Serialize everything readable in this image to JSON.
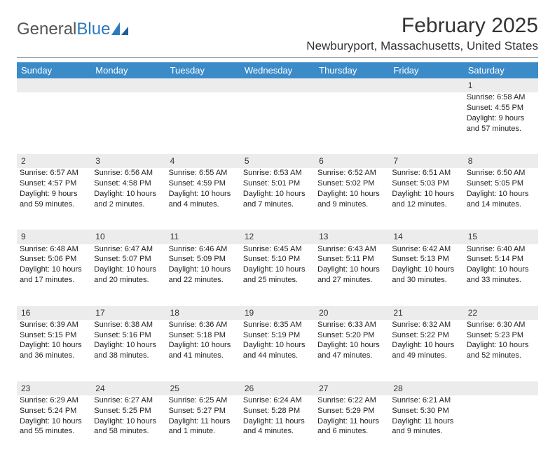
{
  "logo": {
    "text_gray": "General",
    "text_blue": "Blue"
  },
  "header": {
    "title": "February 2025",
    "location": "Newburyport, Massachusetts, United States"
  },
  "colors": {
    "header_bg": "#3b8bc9",
    "header_text": "#ffffff",
    "daynum_bg": "#ececec",
    "body_text": "#222222",
    "logo_gray": "#555555",
    "logo_blue": "#2b7bbf"
  },
  "weekdays": [
    "Sunday",
    "Monday",
    "Tuesday",
    "Wednesday",
    "Thursday",
    "Friday",
    "Saturday"
  ],
  "weeks": [
    {
      "nums": [
        "",
        "",
        "",
        "",
        "",
        "",
        "1"
      ],
      "cells": [
        "",
        "",
        "",
        "",
        "",
        "",
        "Sunrise: 6:58 AM\nSunset: 4:55 PM\nDaylight: 9 hours and 57 minutes."
      ]
    },
    {
      "nums": [
        "2",
        "3",
        "4",
        "5",
        "6",
        "7",
        "8"
      ],
      "cells": [
        "Sunrise: 6:57 AM\nSunset: 4:57 PM\nDaylight: 9 hours and 59 minutes.",
        "Sunrise: 6:56 AM\nSunset: 4:58 PM\nDaylight: 10 hours and 2 minutes.",
        "Sunrise: 6:55 AM\nSunset: 4:59 PM\nDaylight: 10 hours and 4 minutes.",
        "Sunrise: 6:53 AM\nSunset: 5:01 PM\nDaylight: 10 hours and 7 minutes.",
        "Sunrise: 6:52 AM\nSunset: 5:02 PM\nDaylight: 10 hours and 9 minutes.",
        "Sunrise: 6:51 AM\nSunset: 5:03 PM\nDaylight: 10 hours and 12 minutes.",
        "Sunrise: 6:50 AM\nSunset: 5:05 PM\nDaylight: 10 hours and 14 minutes."
      ]
    },
    {
      "nums": [
        "9",
        "10",
        "11",
        "12",
        "13",
        "14",
        "15"
      ],
      "cells": [
        "Sunrise: 6:48 AM\nSunset: 5:06 PM\nDaylight: 10 hours and 17 minutes.",
        "Sunrise: 6:47 AM\nSunset: 5:07 PM\nDaylight: 10 hours and 20 minutes.",
        "Sunrise: 6:46 AM\nSunset: 5:09 PM\nDaylight: 10 hours and 22 minutes.",
        "Sunrise: 6:45 AM\nSunset: 5:10 PM\nDaylight: 10 hours and 25 minutes.",
        "Sunrise: 6:43 AM\nSunset: 5:11 PM\nDaylight: 10 hours and 27 minutes.",
        "Sunrise: 6:42 AM\nSunset: 5:13 PM\nDaylight: 10 hours and 30 minutes.",
        "Sunrise: 6:40 AM\nSunset: 5:14 PM\nDaylight: 10 hours and 33 minutes."
      ]
    },
    {
      "nums": [
        "16",
        "17",
        "18",
        "19",
        "20",
        "21",
        "22"
      ],
      "cells": [
        "Sunrise: 6:39 AM\nSunset: 5:15 PM\nDaylight: 10 hours and 36 minutes.",
        "Sunrise: 6:38 AM\nSunset: 5:16 PM\nDaylight: 10 hours and 38 minutes.",
        "Sunrise: 6:36 AM\nSunset: 5:18 PM\nDaylight: 10 hours and 41 minutes.",
        "Sunrise: 6:35 AM\nSunset: 5:19 PM\nDaylight: 10 hours and 44 minutes.",
        "Sunrise: 6:33 AM\nSunset: 5:20 PM\nDaylight: 10 hours and 47 minutes.",
        "Sunrise: 6:32 AM\nSunset: 5:22 PM\nDaylight: 10 hours and 49 minutes.",
        "Sunrise: 6:30 AM\nSunset: 5:23 PM\nDaylight: 10 hours and 52 minutes."
      ]
    },
    {
      "nums": [
        "23",
        "24",
        "25",
        "26",
        "27",
        "28",
        ""
      ],
      "cells": [
        "Sunrise: 6:29 AM\nSunset: 5:24 PM\nDaylight: 10 hours and 55 minutes.",
        "Sunrise: 6:27 AM\nSunset: 5:25 PM\nDaylight: 10 hours and 58 minutes.",
        "Sunrise: 6:25 AM\nSunset: 5:27 PM\nDaylight: 11 hours and 1 minute.",
        "Sunrise: 6:24 AM\nSunset: 5:28 PM\nDaylight: 11 hours and 4 minutes.",
        "Sunrise: 6:22 AM\nSunset: 5:29 PM\nDaylight: 11 hours and 6 minutes.",
        "Sunrise: 6:21 AM\nSunset: 5:30 PM\nDaylight: 11 hours and 9 minutes.",
        ""
      ]
    }
  ]
}
